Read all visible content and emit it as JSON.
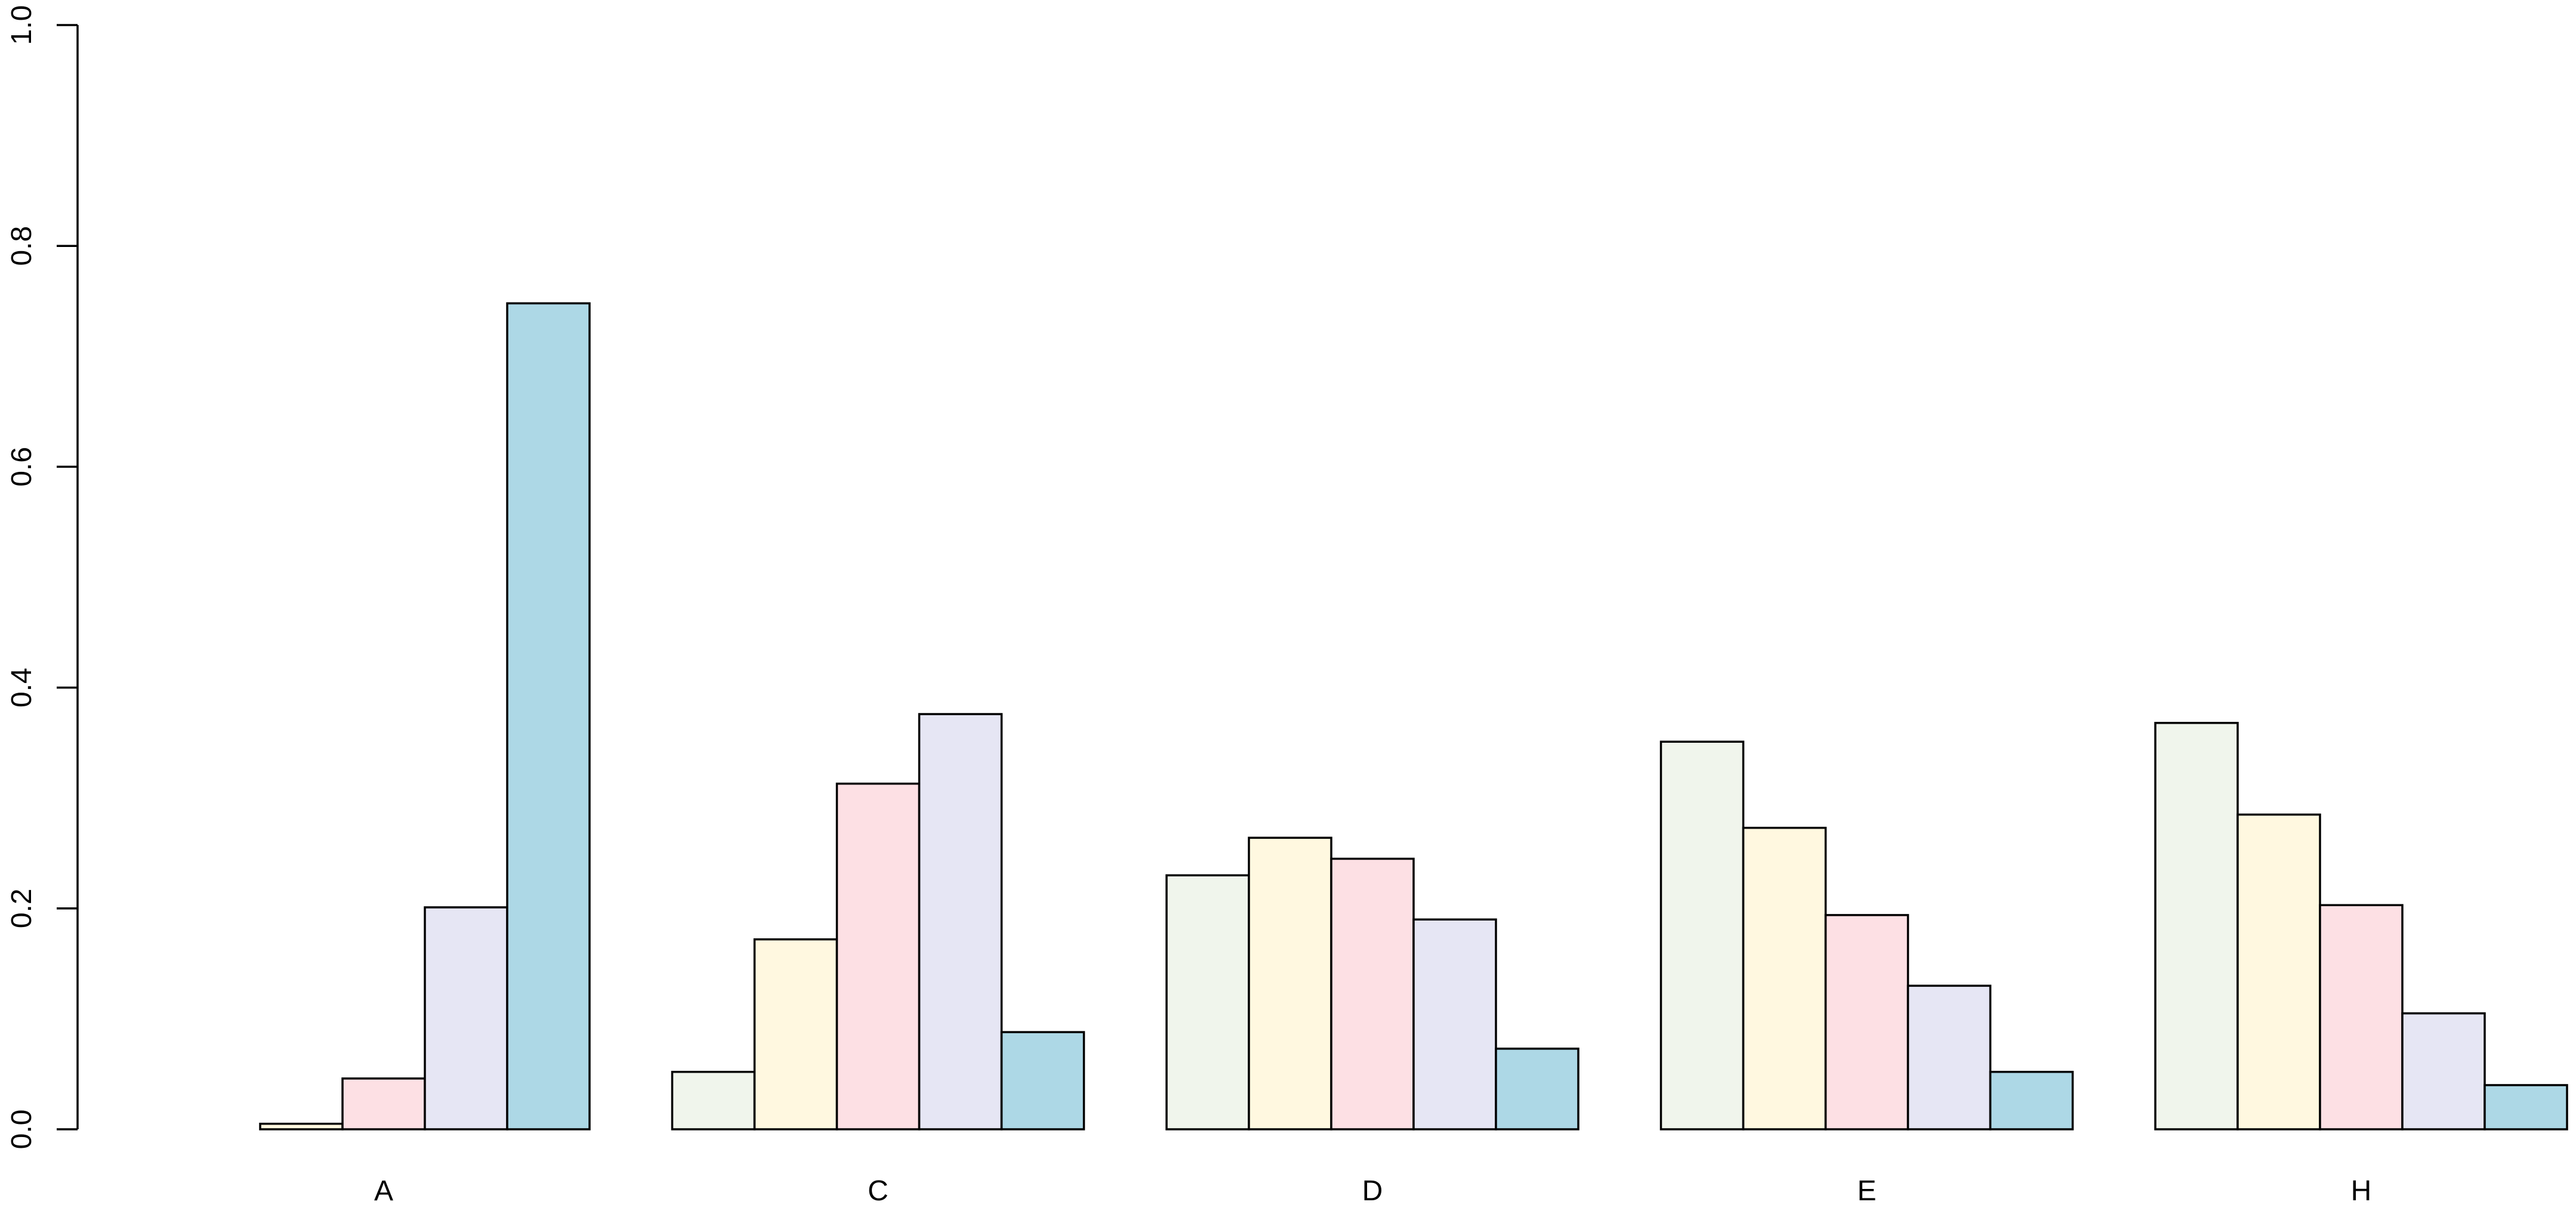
{
  "chart_data": {
    "type": "bar",
    "title": "",
    "xlabel": "",
    "ylabel": "",
    "ylim": [
      0,
      1
    ],
    "yticks": [
      0.0,
      0.2,
      0.4,
      0.6,
      0.8,
      1.0
    ],
    "ytick_labels": [
      "0.0",
      "0.2",
      "0.4",
      "0.6",
      "0.8",
      "1.0"
    ],
    "categories": [
      "A",
      "C",
      "D",
      "E",
      "H"
    ],
    "series": [
      {
        "color": "#F0F5EC",
        "values": [
          0.0,
          0.052,
          0.23,
          0.351,
          0.368
        ]
      },
      {
        "color": "#FFF8E0",
        "values": [
          0.005,
          0.172,
          0.264,
          0.273,
          0.285
        ]
      },
      {
        "color": "#FDE0E4",
        "values": [
          0.046,
          0.313,
          0.245,
          0.194,
          0.203
        ]
      },
      {
        "color": "#E6E6F4",
        "values": [
          0.201,
          0.376,
          0.19,
          0.13,
          0.105
        ]
      },
      {
        "color": "#ADD8E6",
        "values": [
          0.748,
          0.088,
          0.073,
          0.052,
          0.04
        ]
      }
    ],
    "grid": false,
    "legend": "none"
  }
}
